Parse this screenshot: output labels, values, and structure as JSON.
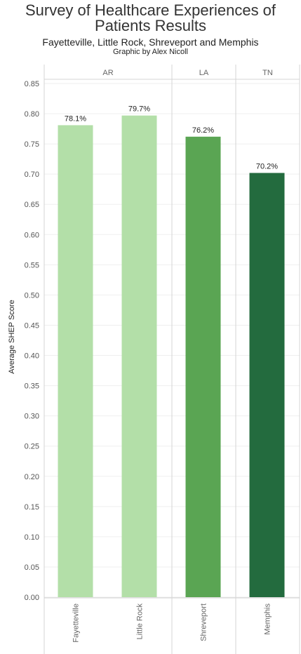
{
  "header": {
    "title_line1": "Survey of Healthcare Experiences of",
    "title_line2": "Patients Results",
    "subtitle": "Fayetteville, Little Rock, Shreveport and Memphis",
    "credit": "Graphic by Alex Nicoll"
  },
  "chart_data": {
    "type": "bar",
    "title": "Survey of Healthcare Experiences of Patients Results",
    "subtitle": "Fayetteville, Little Rock, Shreveport and Memphis",
    "ylabel": "Average SHEP Score",
    "xlabel": "",
    "ylim": [
      0,
      0.86
    ],
    "yticks": [
      "0.00",
      "0.05",
      "0.10",
      "0.15",
      "0.20",
      "0.25",
      "0.30",
      "0.35",
      "0.40",
      "0.45",
      "0.50",
      "0.55",
      "0.60",
      "0.65",
      "0.70",
      "0.75",
      "0.80",
      "0.85"
    ],
    "groups": [
      {
        "name": "AR",
        "categories": [
          "Fayetteville",
          "Little Rock"
        ]
      },
      {
        "name": "LA",
        "categories": [
          "Shreveport"
        ]
      },
      {
        "name": "TN",
        "categories": [
          "Memphis"
        ]
      }
    ],
    "categories": [
      "Fayetteville",
      "Little Rock",
      "Shreveport",
      "Memphis"
    ],
    "values": [
      0.781,
      0.797,
      0.762,
      0.702
    ],
    "data_labels": [
      "78.1%",
      "79.7%",
      "76.2%",
      "70.2%"
    ],
    "colors": [
      "#b3dfa8",
      "#b3dfa8",
      "#5aa553",
      "#236b3e"
    ],
    "grid": true
  }
}
